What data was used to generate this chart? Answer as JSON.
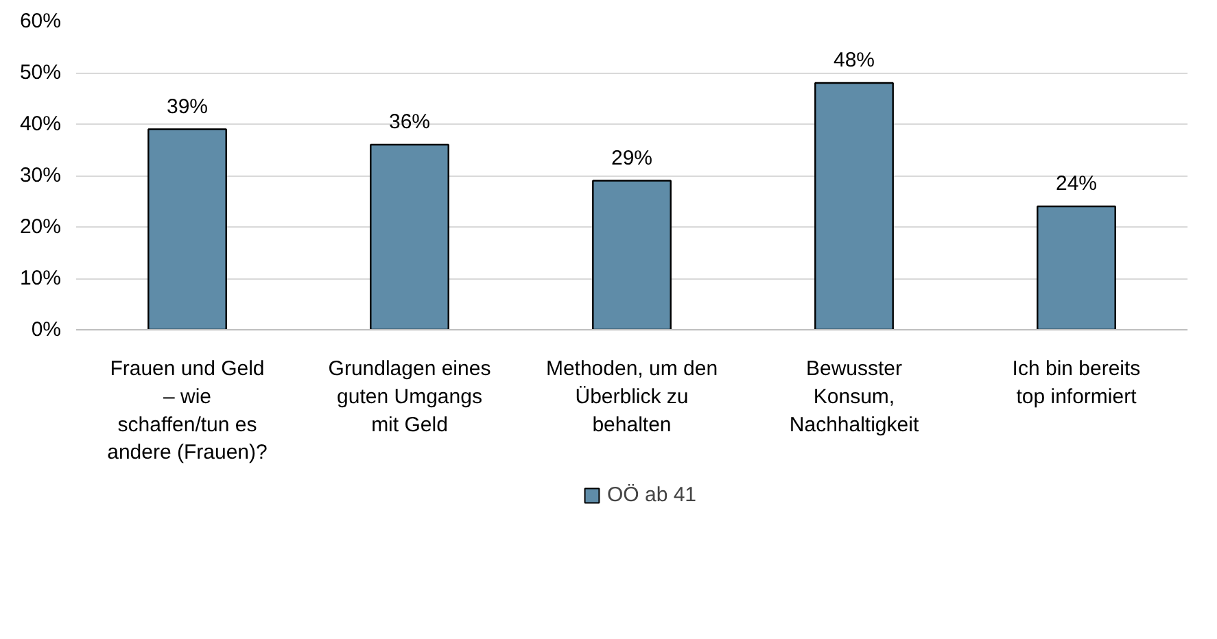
{
  "chart_data": {
    "type": "bar",
    "categories": [
      "Frauen und Geld – wie schaffen/tun es andere (Frauen)?",
      "Grundlagen eines guten Umgangs mit Geld",
      "Methoden, um den Überblick zu behalten",
      "Bewusster Konsum, Nachhaltigkeit",
      "Ich bin bereits top informiert"
    ],
    "series": [
      {
        "name": "OÖ ab 41",
        "color": "#5f8ca8",
        "values": [
          39,
          36,
          29,
          48,
          24
        ],
        "value_labels": [
          "39%",
          "36%",
          "29%",
          "48%",
          "24%"
        ]
      }
    ],
    "ylim": [
      0,
      60
    ],
    "yticks": [
      {
        "value": 0,
        "label": "0%"
      },
      {
        "value": 10,
        "label": "10%"
      },
      {
        "value": 20,
        "label": "20%"
      },
      {
        "value": 30,
        "label": "30%"
      },
      {
        "value": 40,
        "label": "40%"
      },
      {
        "value": 50,
        "label": "50%"
      },
      {
        "value": 60,
        "label": "60%"
      }
    ],
    "grid": "y",
    "legend": "bottom"
  }
}
